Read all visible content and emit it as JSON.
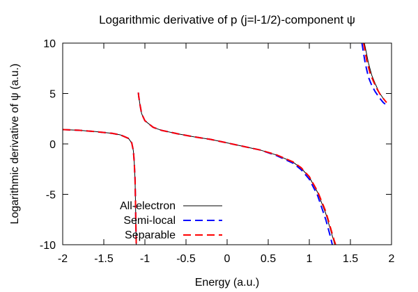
{
  "chart_data": {
    "type": "line",
    "title": "Logarithmic derivative of p (j=l-1/2)-component ψ",
    "xlabel": "Energy (a.u.)",
    "ylabel": "Logarithmic derivative of ψ (a.u.)",
    "xlim": [
      -2,
      2
    ],
    "ylim": [
      -10,
      10
    ],
    "xticks": [
      -2,
      -1.5,
      -1,
      -0.5,
      0,
      0.5,
      1,
      1.5,
      2
    ],
    "xtick_labels": [
      "-2",
      "-1.5",
      "-1",
      "-0.5",
      "0",
      "0.5",
      "1",
      "1.5",
      "2"
    ],
    "yticks": [
      -10,
      -5,
      0,
      5,
      10
    ],
    "ytick_labels": [
      "-10",
      "-5",
      "0",
      "5",
      "10"
    ],
    "grid": false,
    "legend_position": "bottom-left",
    "series": [
      {
        "name": "All-electron",
        "color": "#000000",
        "style": "solid",
        "segments": [
          [
            [
              -2,
              1.42
            ],
            [
              -1.8,
              1.35
            ],
            [
              -1.6,
              1.22
            ],
            [
              -1.4,
              1.05
            ],
            [
              -1.3,
              0.9
            ],
            [
              -1.2,
              0.55
            ],
            [
              -1.16,
              0.1
            ],
            [
              -1.14,
              -0.7
            ],
            [
              -1.13,
              -1.8
            ],
            [
              -1.12,
              -3.5
            ],
            [
              -1.115,
              -5.5
            ],
            [
              -1.11,
              -8.0
            ],
            [
              -1.105,
              -10.0
            ]
          ],
          [
            [
              -1.08,
              5.1
            ],
            [
              -1.075,
              4.7
            ],
            [
              -1.06,
              3.9
            ],
            [
              -1.04,
              3.0
            ],
            [
              -1.0,
              2.3
            ],
            [
              -0.9,
              1.65
            ],
            [
              -0.8,
              1.35
            ],
            [
              -0.6,
              1.0
            ],
            [
              -0.4,
              0.7
            ],
            [
              -0.2,
              0.45
            ],
            [
              0,
              0.1
            ],
            [
              0.2,
              -0.25
            ],
            [
              0.4,
              -0.6
            ],
            [
              0.6,
              -1.1
            ],
            [
              0.8,
              -1.8
            ],
            [
              0.9,
              -2.4
            ],
            [
              1.0,
              -3.3
            ],
            [
              1.1,
              -4.8
            ],
            [
              1.2,
              -6.9
            ],
            [
              1.25,
              -8.3
            ],
            [
              1.3,
              -9.7
            ],
            [
              1.31,
              -10.0
            ]
          ],
          [
            [
              1.67,
              10.0
            ],
            [
              1.72,
              8.0
            ],
            [
              1.76,
              6.8
            ],
            [
              1.8,
              6.0
            ],
            [
              1.85,
              5.1
            ],
            [
              1.9,
              4.5
            ],
            [
              1.93,
              4.2
            ]
          ]
        ]
      },
      {
        "name": "Semi-local",
        "color": "#0000ff",
        "style": "dashed",
        "segments": [
          [
            [
              -2,
              1.42
            ],
            [
              -1.8,
              1.35
            ],
            [
              -1.6,
              1.22
            ],
            [
              -1.4,
              1.05
            ],
            [
              -1.3,
              0.9
            ],
            [
              -1.2,
              0.55
            ],
            [
              -1.16,
              0.1
            ],
            [
              -1.14,
              -0.7
            ],
            [
              -1.13,
              -1.8
            ],
            [
              -1.12,
              -3.5
            ],
            [
              -1.115,
              -5.5
            ],
            [
              -1.11,
              -8.0
            ],
            [
              -1.105,
              -10.0
            ]
          ],
          [
            [
              -1.08,
              5.1
            ],
            [
              -1.075,
              4.7
            ],
            [
              -1.06,
              3.9
            ],
            [
              -1.04,
              3.0
            ],
            [
              -1.0,
              2.3
            ],
            [
              -0.9,
              1.65
            ],
            [
              -0.8,
              1.35
            ],
            [
              -0.6,
              1.0
            ],
            [
              -0.4,
              0.7
            ],
            [
              -0.2,
              0.45
            ],
            [
              0,
              0.1
            ],
            [
              0.2,
              -0.25
            ],
            [
              0.4,
              -0.6
            ],
            [
              0.6,
              -1.15
            ],
            [
              0.8,
              -1.9
            ],
            [
              0.9,
              -2.55
            ],
            [
              1.0,
              -3.5
            ],
            [
              1.1,
              -5.1
            ],
            [
              1.2,
              -7.5
            ],
            [
              1.25,
              -9.0
            ],
            [
              1.28,
              -10.0
            ]
          ],
          [
            [
              1.64,
              10.0
            ],
            [
              1.68,
              8.0
            ],
            [
              1.72,
              6.6
            ],
            [
              1.76,
              5.8
            ],
            [
              1.8,
              5.2
            ],
            [
              1.85,
              4.6
            ],
            [
              1.9,
              4.1
            ],
            [
              1.93,
              3.9
            ]
          ]
        ]
      },
      {
        "name": "Separable",
        "color": "#ff0000",
        "style": "dashed",
        "segments": [
          [
            [
              -2,
              1.42
            ],
            [
              -1.8,
              1.35
            ],
            [
              -1.6,
              1.22
            ],
            [
              -1.4,
              1.05
            ],
            [
              -1.3,
              0.9
            ],
            [
              -1.2,
              0.55
            ],
            [
              -1.16,
              0.1
            ],
            [
              -1.14,
              -0.7
            ],
            [
              -1.13,
              -1.8
            ],
            [
              -1.12,
              -3.5
            ],
            [
              -1.115,
              -5.5
            ],
            [
              -1.11,
              -8.0
            ],
            [
              -1.105,
              -10.0
            ]
          ],
          [
            [
              -1.08,
              5.1
            ],
            [
              -1.075,
              4.7
            ],
            [
              -1.06,
              3.9
            ],
            [
              -1.04,
              3.0
            ],
            [
              -1.0,
              2.3
            ],
            [
              -0.9,
              1.65
            ],
            [
              -0.8,
              1.35
            ],
            [
              -0.6,
              1.0
            ],
            [
              -0.4,
              0.7
            ],
            [
              -0.2,
              0.45
            ],
            [
              0,
              0.1
            ],
            [
              0.2,
              -0.25
            ],
            [
              0.4,
              -0.6
            ],
            [
              0.6,
              -1.08
            ],
            [
              0.8,
              -1.78
            ],
            [
              0.9,
              -2.35
            ],
            [
              1.0,
              -3.25
            ],
            [
              1.1,
              -4.7
            ],
            [
              1.2,
              -6.7
            ],
            [
              1.25,
              -8.1
            ],
            [
              1.3,
              -9.5
            ],
            [
              1.32,
              -10.0
            ]
          ],
          [
            [
              1.66,
              10.0
            ],
            [
              1.7,
              8.2
            ],
            [
              1.74,
              7.0
            ],
            [
              1.78,
              6.2
            ],
            [
              1.82,
              5.5
            ],
            [
              1.87,
              4.8
            ],
            [
              1.92,
              4.3
            ],
            [
              1.94,
              4.1
            ]
          ]
        ]
      }
    ]
  }
}
